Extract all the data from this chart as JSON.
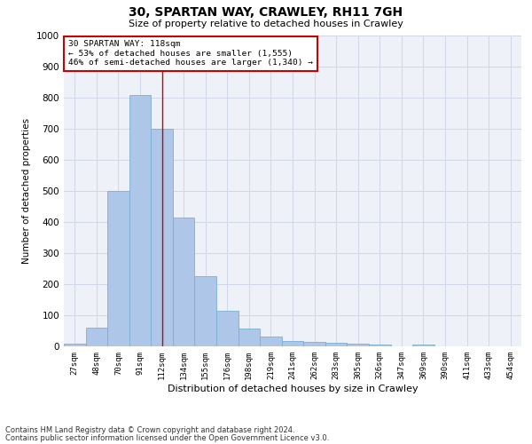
{
  "title": "30, SPARTAN WAY, CRAWLEY, RH11 7GH",
  "subtitle": "Size of property relative to detached houses in Crawley",
  "xlabel": "Distribution of detached houses by size in Crawley",
  "ylabel": "Number of detached properties",
  "categories": [
    "27sqm",
    "48sqm",
    "70sqm",
    "91sqm",
    "112sqm",
    "134sqm",
    "155sqm",
    "176sqm",
    "198sqm",
    "219sqm",
    "241sqm",
    "262sqm",
    "283sqm",
    "305sqm",
    "326sqm",
    "347sqm",
    "369sqm",
    "390sqm",
    "411sqm",
    "433sqm",
    "454sqm"
  ],
  "values": [
    8,
    60,
    500,
    810,
    700,
    415,
    225,
    113,
    58,
    32,
    17,
    13,
    11,
    8,
    5,
    0,
    6,
    0,
    0,
    0,
    0
  ],
  "bar_color": "#aec6e8",
  "bar_edge_color": "#7aafd4",
  "grid_color": "#d0d8e8",
  "background_color": "#eef2f8",
  "vline_x": 4.5,
  "annotation_text": "30 SPARTAN WAY: 118sqm\n← 53% of detached houses are smaller (1,555)\n46% of semi-detached houses are larger (1,340) →",
  "annotation_box_color": "#ffffff",
  "annotation_box_edge_color": "#cc0000",
  "ylim": [
    0,
    1000
  ],
  "yticks": [
    0,
    100,
    200,
    300,
    400,
    500,
    600,
    700,
    800,
    900,
    1000
  ],
  "vline_color": "#cc0000",
  "footnote1": "Contains HM Land Registry data © Crown copyright and database right 2024.",
  "footnote2": "Contains public sector information licensed under the Open Government Licence v3.0."
}
